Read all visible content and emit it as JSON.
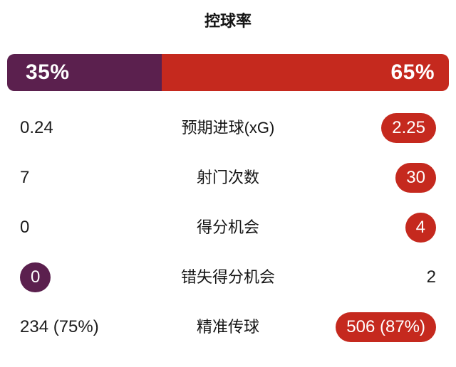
{
  "header": {
    "title": "控球率"
  },
  "possession": {
    "home": "35%",
    "away": "65%",
    "home_width": "35%",
    "away_width": "65%"
  },
  "stats": [
    {
      "label": "预期进球(xG)",
      "home": "0.24",
      "away": "2.25"
    },
    {
      "label": "射门次数",
      "home": "7",
      "away": "30"
    },
    {
      "label": "得分机会",
      "home": "0",
      "away": "4"
    },
    {
      "label": "错失得分机会",
      "home": "0",
      "away": "2"
    },
    {
      "label": "精准传球",
      "home": "234 (75%)",
      "away": "506 (87%)"
    }
  ],
  "colors": {
    "home_team": "#5B204E",
    "away_team": "#C5291E",
    "background": "#ffffff",
    "text": "#141414",
    "badge_text": "#ffffff"
  },
  "chart_data": {
    "type": "table",
    "title": "控球率",
    "columns": [
      "home",
      "stat",
      "away"
    ],
    "rows": [
      [
        "35%",
        "控球率",
        "65%"
      ],
      [
        "0.24",
        "预期进球(xG)",
        "2.25"
      ],
      [
        "7",
        "射门次数",
        "30"
      ],
      [
        "0",
        "得分机会",
        "4"
      ],
      [
        "0",
        "错失得分机会",
        "2"
      ],
      [
        "234 (75%)",
        "精准传球",
        "506 (87%)"
      ]
    ],
    "possession_bar": {
      "home_value": 35,
      "away_value": 65,
      "range": [
        0,
        100
      ]
    },
    "highlighted_cells": [
      {
        "row": "预期进球(xG)",
        "side": "away",
        "color": "#C5291E"
      },
      {
        "row": "射门次数",
        "side": "away",
        "color": "#C5291E"
      },
      {
        "row": "得分机会",
        "side": "away",
        "color": "#C5291E"
      },
      {
        "row": "错失得分机会",
        "side": "home",
        "color": "#5B204E"
      },
      {
        "row": "精准传球",
        "side": "away",
        "color": "#C5291E"
      }
    ],
    "legend_position": "none",
    "grid": false
  }
}
